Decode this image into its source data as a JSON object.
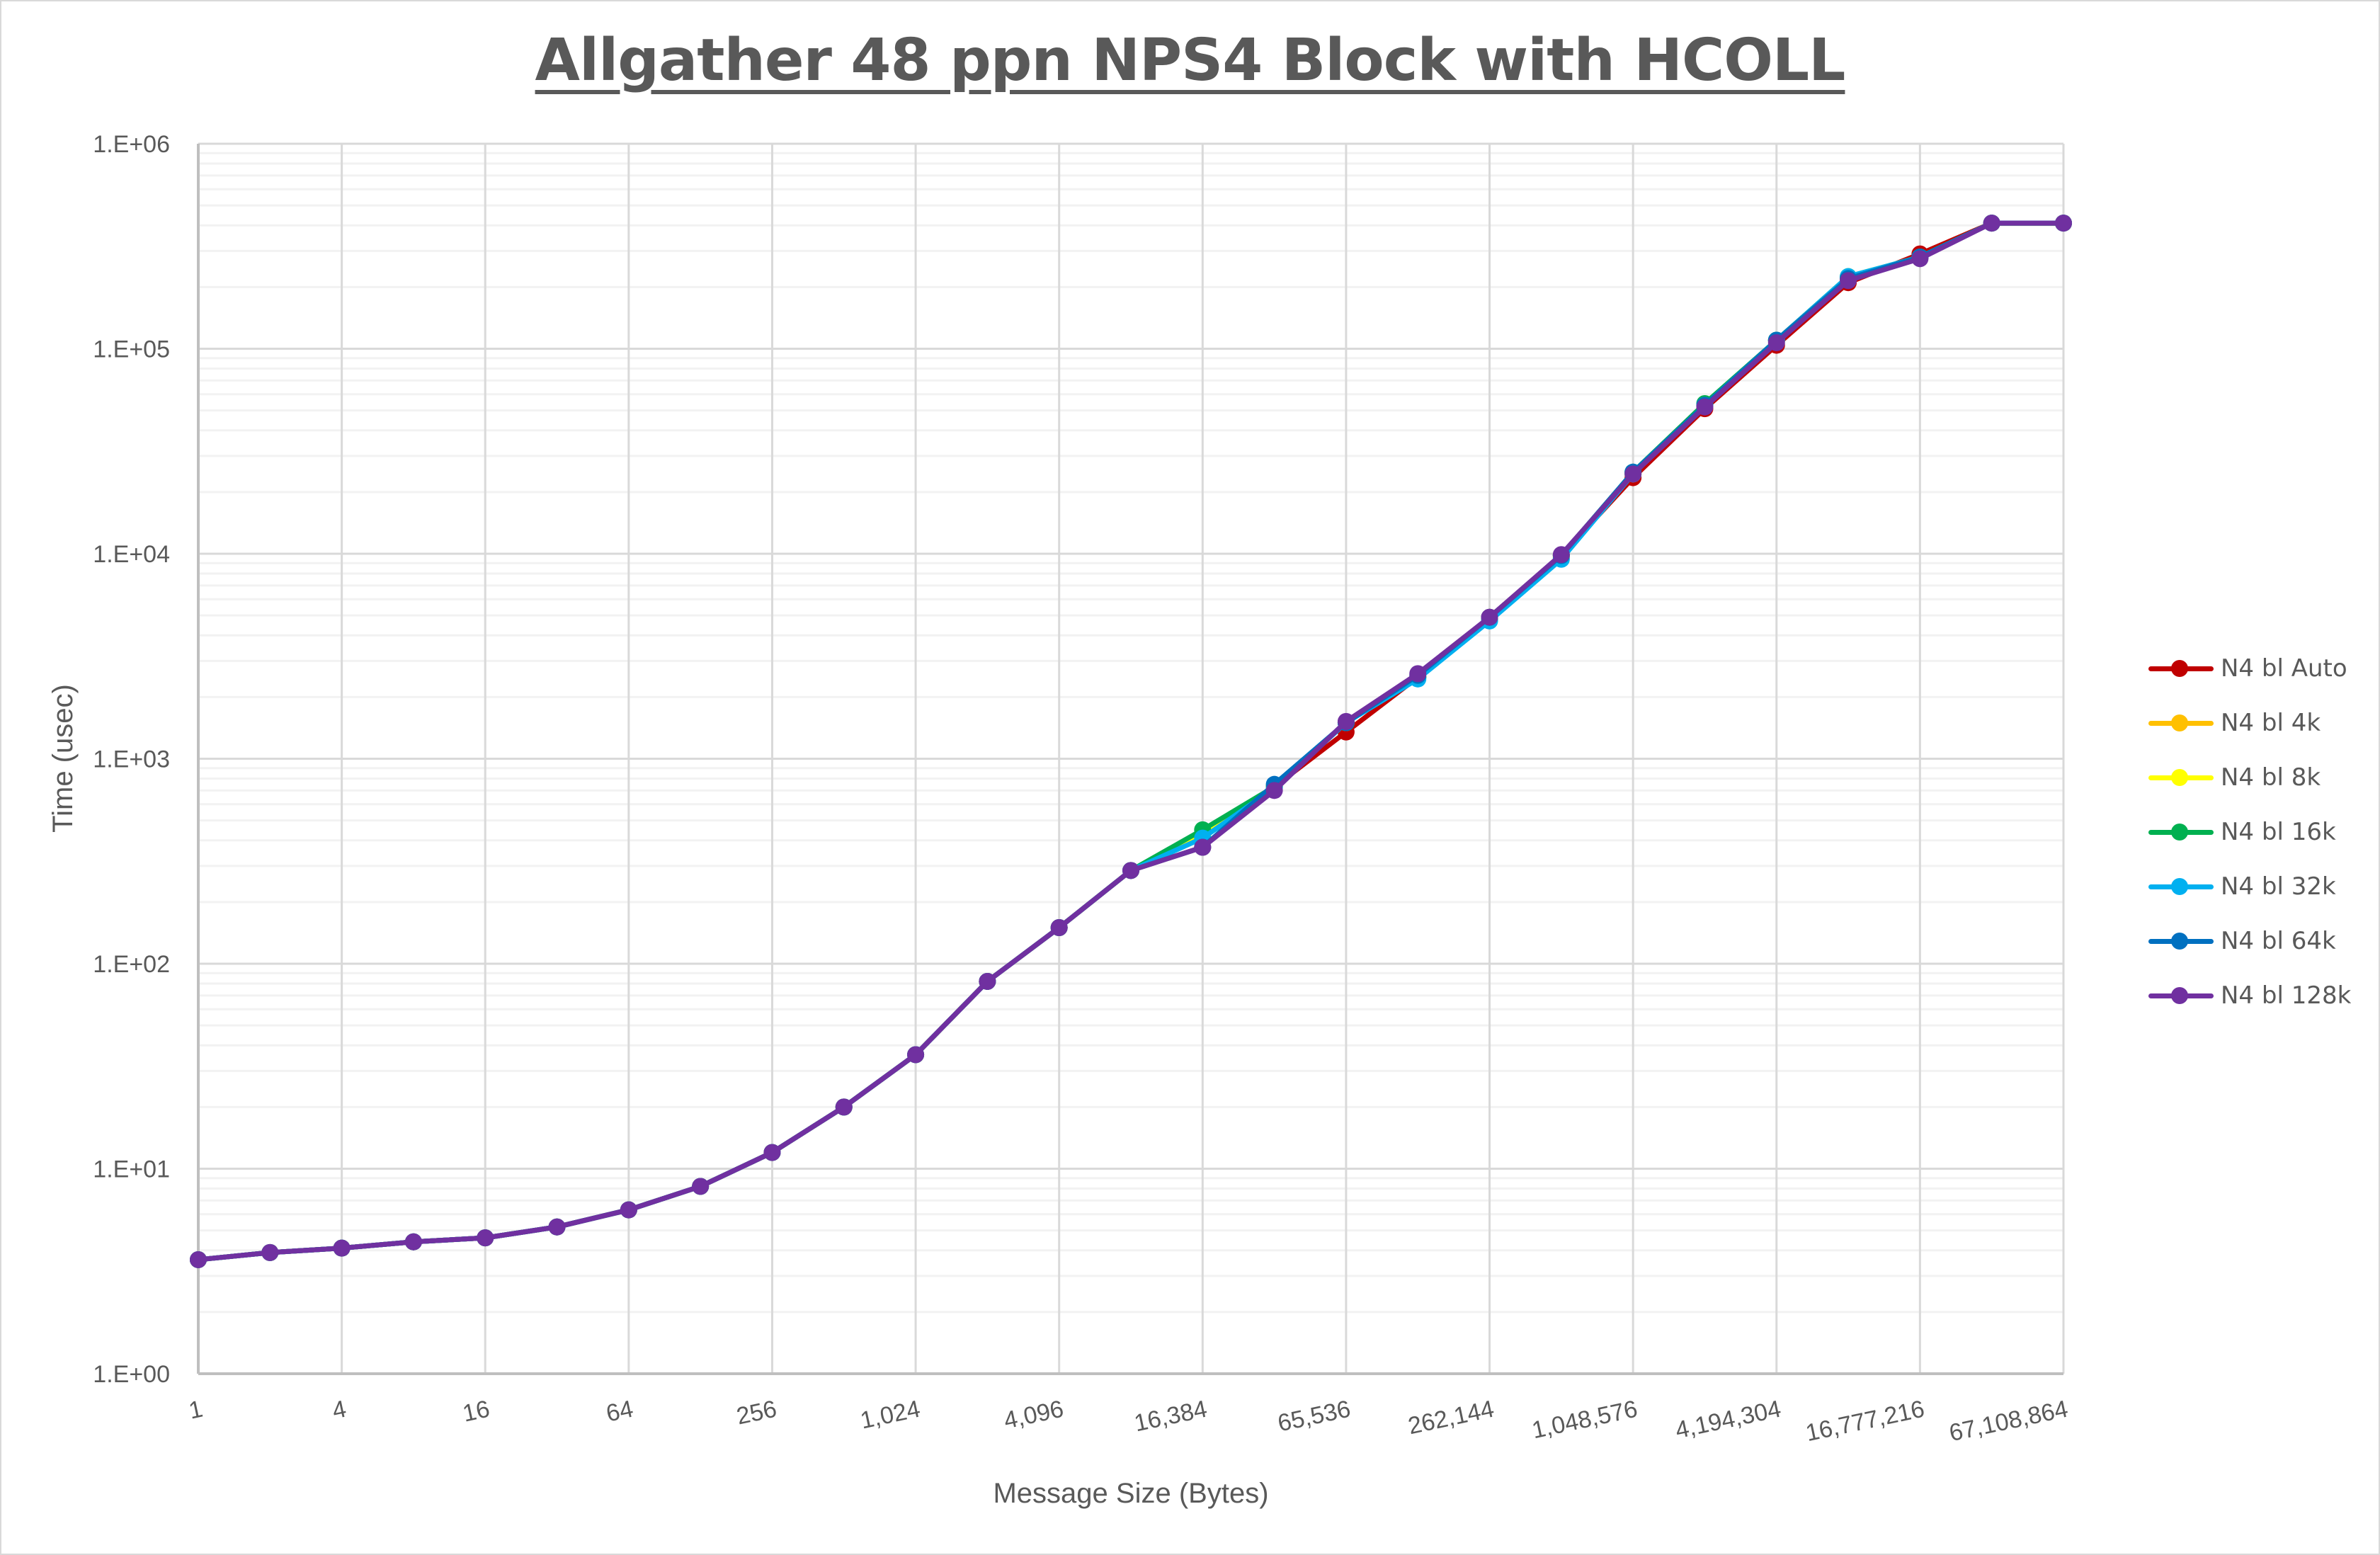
{
  "chart_data": {
    "type": "line",
    "title": "Allgather 48 ppn NPS4 Block with HCOLL",
    "xlabel": "Message Size (Bytes)",
    "ylabel": "Time (usec)",
    "x_scale": "log2",
    "y_scale": "log10",
    "ylim": [
      1,
      1000000
    ],
    "y_tick_labels": [
      "1.E+00",
      "1.E+01",
      "1.E+02",
      "1.E+03",
      "1.E+04",
      "1.E+05",
      "1.E+06"
    ],
    "x_tick_labels": [
      "1",
      "4",
      "16",
      "64",
      "256",
      "1,024",
      "4,096",
      "16,384",
      "65,536",
      "262,144",
      "1,048,576",
      "4,194,304",
      "16,777,216",
      "67,108,864"
    ],
    "grid": true,
    "legend_position": "right",
    "x": [
      1,
      2,
      4,
      8,
      16,
      32,
      64,
      128,
      256,
      512,
      1024,
      2048,
      4096,
      8192,
      16384,
      32768,
      65536,
      131072,
      262144,
      524288,
      1048576,
      2097152,
      4194304,
      8388608,
      16777216,
      33554432,
      67108864
    ],
    "series": [
      {
        "name": "N4 bl Auto",
        "color": "#C00000",
        "values": [
          3.6,
          3.9,
          4.1,
          4.4,
          4.6,
          5.2,
          6.3,
          8.2,
          12,
          20,
          36,
          82,
          150,
          285,
          370,
          730,
          1350,
          2500,
          4900,
          9800,
          23500,
          51000,
          104000,
          210000,
          290000,
          410000,
          410000
        ]
      },
      {
        "name": "N4 bl 4k",
        "color": "#FFC000",
        "values": [
          3.6,
          3.9,
          4.1,
          4.4,
          4.6,
          5.2,
          6.3,
          8.2,
          12,
          20,
          36,
          82,
          150,
          285,
          420,
          730,
          1500,
          2500,
          4800,
          9600,
          24500,
          53000,
          110000,
          220000,
          280000,
          410000,
          410000
        ]
      },
      {
        "name": "N4 bl 8k",
        "color": "#FFFF00",
        "values": [
          3.6,
          3.9,
          4.1,
          4.4,
          4.6,
          5.2,
          6.3,
          8.2,
          12,
          20,
          36,
          82,
          150,
          285,
          430,
          730,
          1500,
          2500,
          4800,
          9600,
          24500,
          53000,
          110000,
          225000,
          280000,
          410000,
          410000
        ]
      },
      {
        "name": "N4 bl 16k",
        "color": "#00B050",
        "values": [
          3.6,
          3.9,
          4.1,
          4.4,
          4.6,
          5.2,
          6.3,
          8.2,
          12,
          20,
          36,
          82,
          150,
          285,
          450,
          730,
          1500,
          2500,
          4800,
          9800,
          25000,
          54000,
          110000,
          222000,
          280000,
          410000,
          410000
        ]
      },
      {
        "name": "N4 bl 32k",
        "color": "#00B0F0",
        "values": [
          3.6,
          3.9,
          4.1,
          4.4,
          4.6,
          5.2,
          6.3,
          8.2,
          12,
          20,
          36,
          82,
          150,
          285,
          410,
          720,
          1500,
          2450,
          4700,
          9400,
          24500,
          53000,
          110000,
          225000,
          280000,
          410000,
          410000
        ]
      },
      {
        "name": "N4 bl 64k",
        "color": "#0070C0",
        "values": [
          3.6,
          3.9,
          4.1,
          4.4,
          4.6,
          5.2,
          6.3,
          8.2,
          12,
          20,
          36,
          82,
          150,
          285,
          370,
          750,
          1500,
          2550,
          4900,
          9800,
          25000,
          53000,
          110000,
          220000,
          280000,
          410000,
          410000
        ]
      },
      {
        "name": "N4 bl 128k",
        "color": "#7030A0",
        "values": [
          3.6,
          3.9,
          4.1,
          4.4,
          4.6,
          5.2,
          6.3,
          8.2,
          12,
          20,
          36,
          82,
          150,
          285,
          370,
          700,
          1520,
          2600,
          4900,
          9900,
          24500,
          52000,
          107000,
          215000,
          275000,
          410000,
          410000
        ]
      }
    ]
  },
  "legend": {
    "items": [
      {
        "label": "N4 bl Auto",
        "color": "#C00000"
      },
      {
        "label": "N4 bl 4k",
        "color": "#FFC000"
      },
      {
        "label": "N4 bl 8k",
        "color": "#FFFF00"
      },
      {
        "label": "N4 bl 16k",
        "color": "#00B050"
      },
      {
        "label": "N4 bl 32k",
        "color": "#00B0F0"
      },
      {
        "label": "N4 bl 64k",
        "color": "#0070C0"
      },
      {
        "label": "N4 bl 128k",
        "color": "#7030A0"
      }
    ]
  }
}
